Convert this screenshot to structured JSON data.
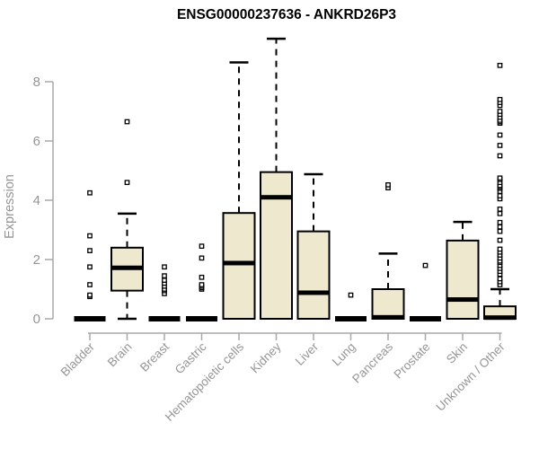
{
  "chart_data": {
    "type": "boxplot",
    "title": "ENSG00000237636 - ANKRD26P3",
    "ylabel": "Expression",
    "xlabel": "",
    "yticks": [
      0,
      2,
      4,
      6,
      8
    ],
    "ylim": [
      0,
      9.5
    ],
    "grid": false,
    "legend": "none",
    "categories": [
      "Bladder",
      "Brain",
      "Breast",
      "Gastric",
      "Hematopoietic cells",
      "Kidney",
      "Liver",
      "Lung",
      "Pancreas",
      "Prostate",
      "Skin",
      "Unknown / Other"
    ],
    "series": [
      {
        "category": "Bladder",
        "low": 0,
        "q1": 0,
        "median": 0,
        "q3": 0,
        "high": 0,
        "outliers": [
          0.75,
          0.8,
          1.15,
          1.75,
          2.3,
          2.8,
          4.25
        ]
      },
      {
        "category": "Brain",
        "low": 0,
        "q1": 0.95,
        "median": 1.72,
        "q3": 2.4,
        "high": 3.55,
        "outliers": [
          4.6,
          6.65
        ]
      },
      {
        "category": "Breast",
        "low": 0,
        "q1": 0,
        "median": 0,
        "q3": 0,
        "high": 0,
        "outliers": [
          0.85,
          0.95,
          1.0,
          1.1,
          1.2,
          1.3,
          1.45,
          1.75
        ]
      },
      {
        "category": "Gastric",
        "low": 0,
        "q1": 0,
        "median": 0,
        "q3": 0,
        "high": 0,
        "outliers": [
          1.0,
          1.05,
          1.1,
          1.15,
          1.4,
          2.05,
          2.45
        ]
      },
      {
        "category": "Hematopoietic cells",
        "low": 0,
        "q1": 0,
        "median": 1.88,
        "q3": 3.57,
        "high": 8.65,
        "outliers": []
      },
      {
        "category": "Kidney",
        "low": 0,
        "q1": 0,
        "median": 4.1,
        "q3": 4.95,
        "high": 9.45,
        "outliers": []
      },
      {
        "category": "Liver",
        "low": 0,
        "q1": 0,
        "median": 0.88,
        "q3": 2.95,
        "high": 4.88,
        "outliers": []
      },
      {
        "category": "Lung",
        "low": 0,
        "q1": 0,
        "median": 0,
        "q3": 0,
        "high": 0,
        "outliers": [
          0.8
        ]
      },
      {
        "category": "Pancreas",
        "low": 0,
        "q1": 0,
        "median": 0.05,
        "q3": 1.0,
        "high": 2.2,
        "outliers": [
          4.42,
          4.52
        ]
      },
      {
        "category": "Prostate",
        "low": 0,
        "q1": 0,
        "median": 0,
        "q3": 0,
        "high": 0,
        "outliers": [
          1.8
        ]
      },
      {
        "category": "Skin",
        "low": 0,
        "q1": 0,
        "median": 0.65,
        "q3": 2.64,
        "high": 3.27,
        "outliers": []
      },
      {
        "category": "Unknown / Other",
        "low": 0,
        "q1": 0,
        "median": 0.04,
        "q3": 0.42,
        "high": 1.0,
        "outliers": [
          1.15,
          1.25,
          1.35,
          1.5,
          1.6,
          1.7,
          1.8,
          1.9,
          1.95,
          2.05,
          2.15,
          2.25,
          2.35,
          2.65,
          2.95,
          3.1,
          3.25,
          3.55,
          3.7,
          4.05,
          4.15,
          4.3,
          4.4,
          4.45,
          4.5,
          4.6,
          4.7,
          4.75,
          5.5,
          5.85,
          6.2,
          6.6,
          6.65,
          6.7,
          6.8,
          6.9,
          7.0,
          7.2,
          7.3,
          7.4,
          8.55
        ]
      }
    ],
    "colors": {
      "box_fill": "#EDE8CE",
      "box_border": "#000000",
      "median": "#000000",
      "outlier_stroke": "#000000",
      "axis_line": "#A8A8A8",
      "tick_text": "#959595",
      "title_text": "#000000"
    }
  }
}
